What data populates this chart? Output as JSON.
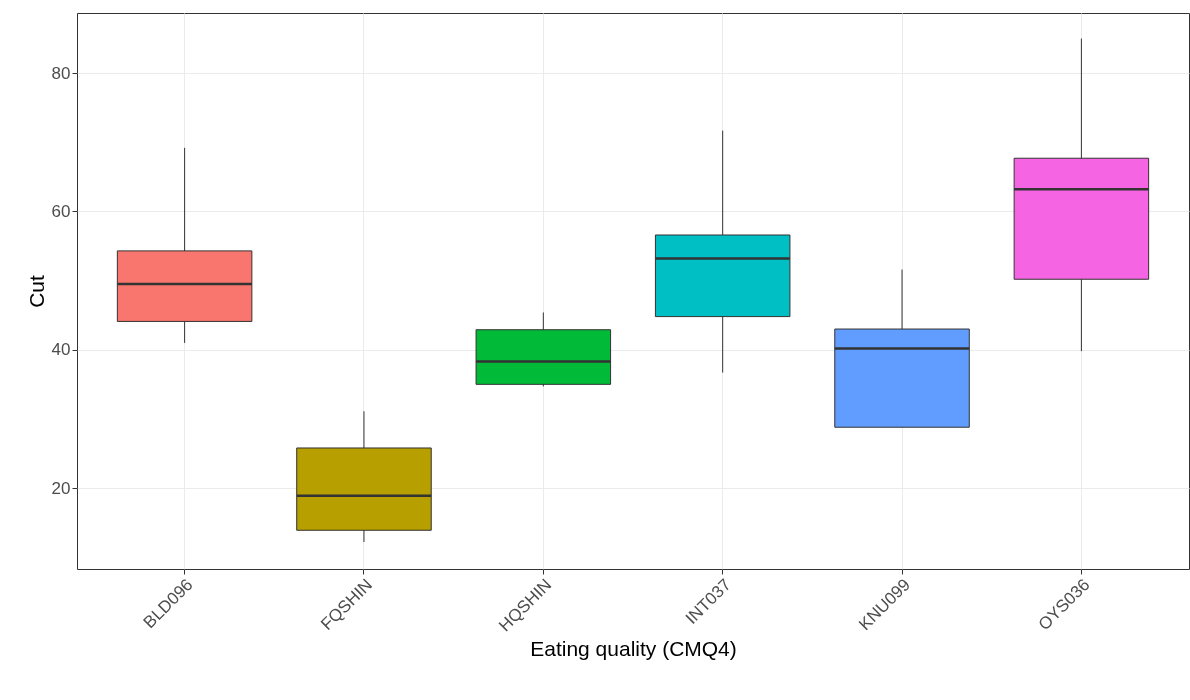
{
  "chart_data": {
    "type": "box",
    "xlabel": "Eating quality (CMQ4)",
    "ylabel": "Cut",
    "categories": [
      "BLD096",
      "FQSHIN",
      "HQSHIN",
      "INT037",
      "KNU099",
      "OYS036"
    ],
    "colors": [
      "#f8766d",
      "#b79f00",
      "#00ba38",
      "#00bfc4",
      "#619cff",
      "#f564e3"
    ],
    "boxes": [
      {
        "low": 41.0,
        "q1": 44.1,
        "median": 49.5,
        "q3": 54.3,
        "high": 69.2
      },
      {
        "low": 12.2,
        "q1": 13.9,
        "median": 18.9,
        "q3": 25.8,
        "high": 31.1
      },
      {
        "low": 34.7,
        "q1": 35.0,
        "median": 38.3,
        "q3": 42.9,
        "high": 45.4
      },
      {
        "low": 36.7,
        "q1": 44.8,
        "median": 53.2,
        "q3": 56.6,
        "high": 71.7
      },
      {
        "low": 28.8,
        "q1": 28.8,
        "median": 40.2,
        "q3": 43.0,
        "high": 51.6
      },
      {
        "low": 39.8,
        "q1": 50.2,
        "median": 63.2,
        "q3": 67.7,
        "high": 85.0
      }
    ],
    "ylim": [
      8.3,
      88.7
    ],
    "yticks": [
      20,
      40,
      60,
      80
    ],
    "grid": true
  }
}
